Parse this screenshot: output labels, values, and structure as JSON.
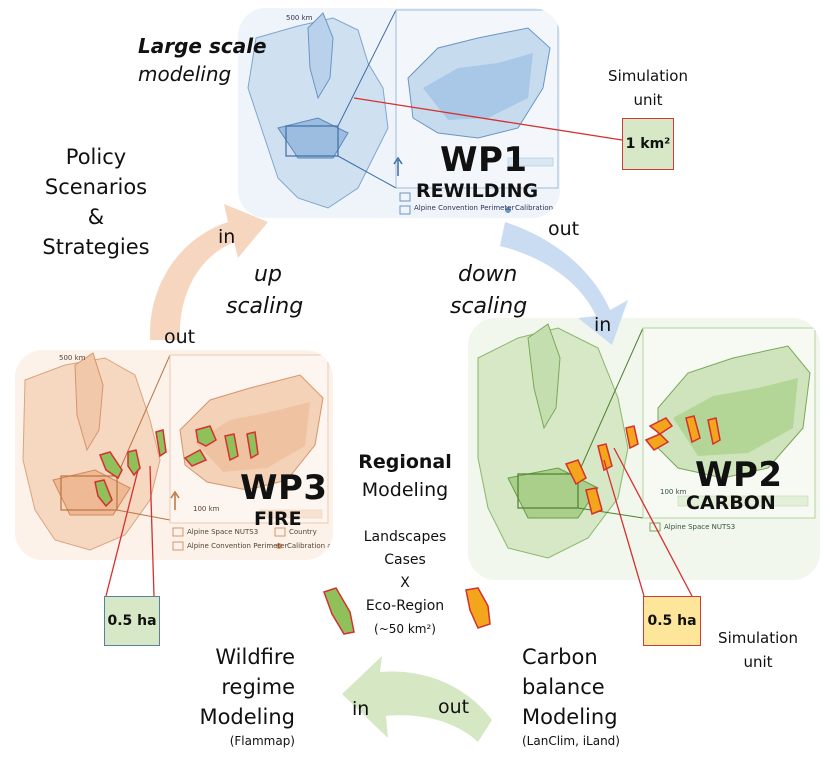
{
  "colors": {
    "wp1_map": "#cfe0f0",
    "wp2_map": "#d6e8c6",
    "wp3_map": "#f6d7c0",
    "arrow_blue": "#c9dcf1",
    "arrow_orange": "#f7d6c0",
    "arrow_green": "#d6e7c4",
    "patch_green": "#8fc05a",
    "patch_orange": "#f3a51c",
    "box_blue_fill": "#d6e8c6",
    "box_yellow_fill": "#fde59a",
    "connector_red": "#d62f2f"
  },
  "wp1": {
    "title": "WP1",
    "subtitle": "REWILDING",
    "heading_bold": "Large scale",
    "heading_italic": "modeling",
    "map_scale": "500 km",
    "legend_1": "Alpine Convention Perimeter",
    "legend_2": "Calibration ar"
  },
  "wp2": {
    "title": "WP2",
    "subtitle": "CARBON",
    "map_scale": "100 km",
    "legend_1": "Alpine Space NUTS3"
  },
  "wp3": {
    "title": "WP3",
    "subtitle": "FIRE",
    "map_scale": "500 km",
    "map_scale_2": "100 km",
    "legend_1": "Alpine Space NUTS3",
    "legend_2": "Country",
    "legend_3": "Alpine Convention Perimeter",
    "legend_4": "Calibration ar"
  },
  "simulation_unit_top": {
    "line1": "Simulation",
    "line2": "unit",
    "value": "1 km²"
  },
  "simulation_unit_right": {
    "line1": "Simulation",
    "line2": "unit",
    "value": "0.5 ha"
  },
  "box_left": {
    "value": "0.5 ha"
  },
  "policy": {
    "line1": "Policy",
    "line2": "Scenarios",
    "line3": "&",
    "line4": "Strategies"
  },
  "arrows": {
    "up_scaling_1": "up",
    "up_scaling_2": "scaling",
    "down_scaling_1": "down",
    "down_scaling_2": "scaling",
    "in_label": "in",
    "out_label": "out"
  },
  "regional": {
    "title_bold": "Regional",
    "title": "Modeling",
    "line1": "Landscapes",
    "line2": "Cases",
    "line3": "X",
    "line4": "Eco-Region",
    "line5": "(~50 km²)"
  },
  "wildfire": {
    "line1": "Wildfire",
    "line2": "regime",
    "line3": "Modeling",
    "note": "(Flammap)"
  },
  "carbon": {
    "line1": "Carbon",
    "line2": "balance",
    "line3": "Modeling",
    "note": "(LanClim, iLand)"
  }
}
